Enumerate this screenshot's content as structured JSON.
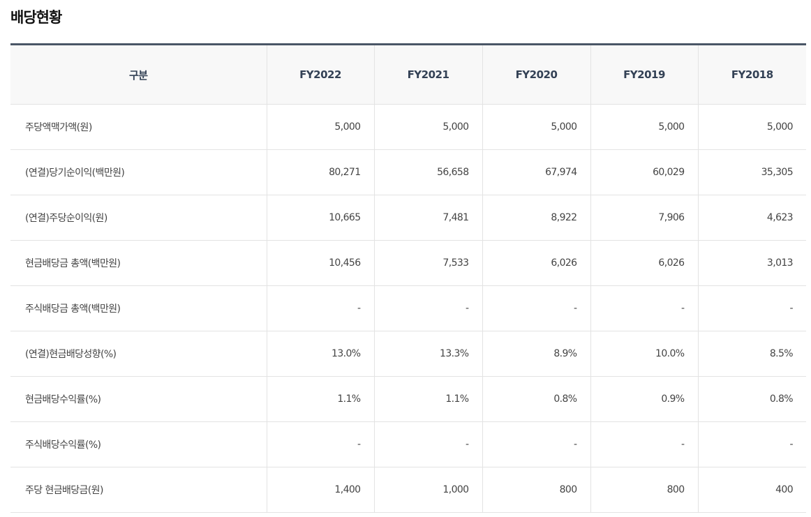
{
  "title": "배당현황",
  "table": {
    "headers": [
      "구분",
      "FY2022",
      "FY2021",
      "FY2020",
      "FY2019",
      "FY2018"
    ],
    "rows": [
      {
        "label": "주당액맥가액(원)",
        "values": [
          "5,000",
          "5,000",
          "5,000",
          "5,000",
          "5,000"
        ]
      },
      {
        "label": "(연결)당기순이익(백만원)",
        "values": [
          "80,271",
          "56,658",
          "67,974",
          "60,029",
          "35,305"
        ]
      },
      {
        "label": "(연결)주당순이익(원)",
        "values": [
          "10,665",
          "7,481",
          "8,922",
          "7,906",
          "4,623"
        ]
      },
      {
        "label": "현금배당금 총액(백만원)",
        "values": [
          "10,456",
          "7,533",
          "6,026",
          "6,026",
          "3,013"
        ]
      },
      {
        "label": "주식배당금 총액(백만원)",
        "values": [
          "-",
          "-",
          "-",
          "-",
          "-"
        ]
      },
      {
        "label": "(연결)현금배당성향(%)",
        "values": [
          "13.0%",
          "13.3%",
          "8.9%",
          "10.0%",
          "8.5%"
        ]
      },
      {
        "label": "현금배당수익률(%)",
        "values": [
          "1.1%",
          "1.1%",
          "0.8%",
          "0.9%",
          "0.8%"
        ]
      },
      {
        "label": "주식배당수익률(%)",
        "values": [
          "-",
          "-",
          "-",
          "-",
          "-"
        ]
      },
      {
        "label": "주당 현금배당금(원)",
        "values": [
          "1,400",
          "1,000",
          "800",
          "800",
          "400"
        ]
      }
    ]
  },
  "colors": {
    "header_bg": "#f8f8f8",
    "top_border": "#4a5666",
    "grid": "#e3e3e3"
  }
}
